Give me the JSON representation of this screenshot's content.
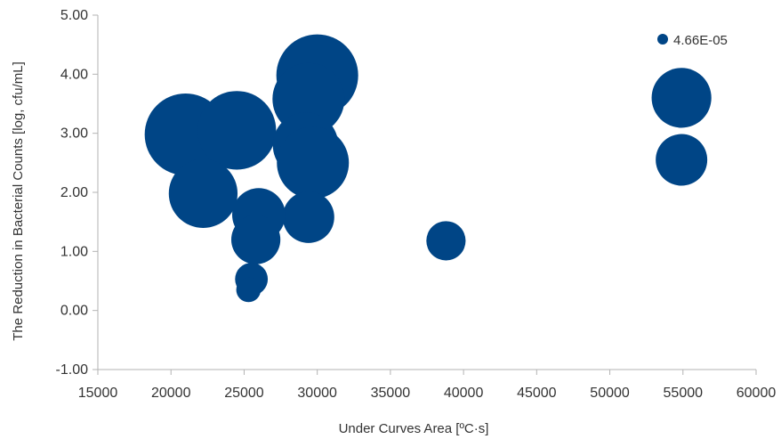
{
  "chart_data": {
    "type": "bubble",
    "xlabel": "Under Curves Area [ºC·s]",
    "ylabel": "The Reduction in Bacterial Counts [log, cfu/mL]",
    "xlim": [
      15000,
      60000
    ],
    "ylim": [
      -1.0,
      5.0
    ],
    "x_ticks": [
      "15000",
      "20000",
      "25000",
      "30000",
      "35000",
      "40000",
      "45000",
      "50000",
      "55000",
      "60000"
    ],
    "y_ticks": [
      "-1.00",
      "0.00",
      "1.00",
      "2.00",
      "3.00",
      "4.00",
      "5.00"
    ],
    "grid": false,
    "legend_position": "top-right",
    "colors": {
      "bubble": "#004586",
      "axis": "#b3b3b3",
      "text": "#333333"
    },
    "series": [
      {
        "name": "4.66E-05",
        "points": [
          {
            "x": 21000,
            "y": 2.98,
            "size": 1.0
          },
          {
            "x": 24500,
            "y": 3.05,
            "size": 0.96
          },
          {
            "x": 22200,
            "y": 1.98,
            "size": 0.84
          },
          {
            "x": 30000,
            "y": 3.98,
            "size": 1.0
          },
          {
            "x": 29400,
            "y": 3.58,
            "size": 0.88
          },
          {
            "x": 29200,
            "y": 2.8,
            "size": 0.8
          },
          {
            "x": 29700,
            "y": 2.5,
            "size": 0.88
          },
          {
            "x": 29400,
            "y": 1.58,
            "size": 0.63
          },
          {
            "x": 26000,
            "y": 1.62,
            "size": 0.65
          },
          {
            "x": 25800,
            "y": 1.2,
            "size": 0.6
          },
          {
            "x": 25500,
            "y": 0.53,
            "size": 0.4
          },
          {
            "x": 25300,
            "y": 0.35,
            "size": 0.3
          },
          {
            "x": 38800,
            "y": 1.18,
            "size": 0.48
          },
          {
            "x": 54900,
            "y": 3.6,
            "size": 0.73
          },
          {
            "x": 54900,
            "y": 2.55,
            "size": 0.63
          }
        ]
      }
    ]
  }
}
